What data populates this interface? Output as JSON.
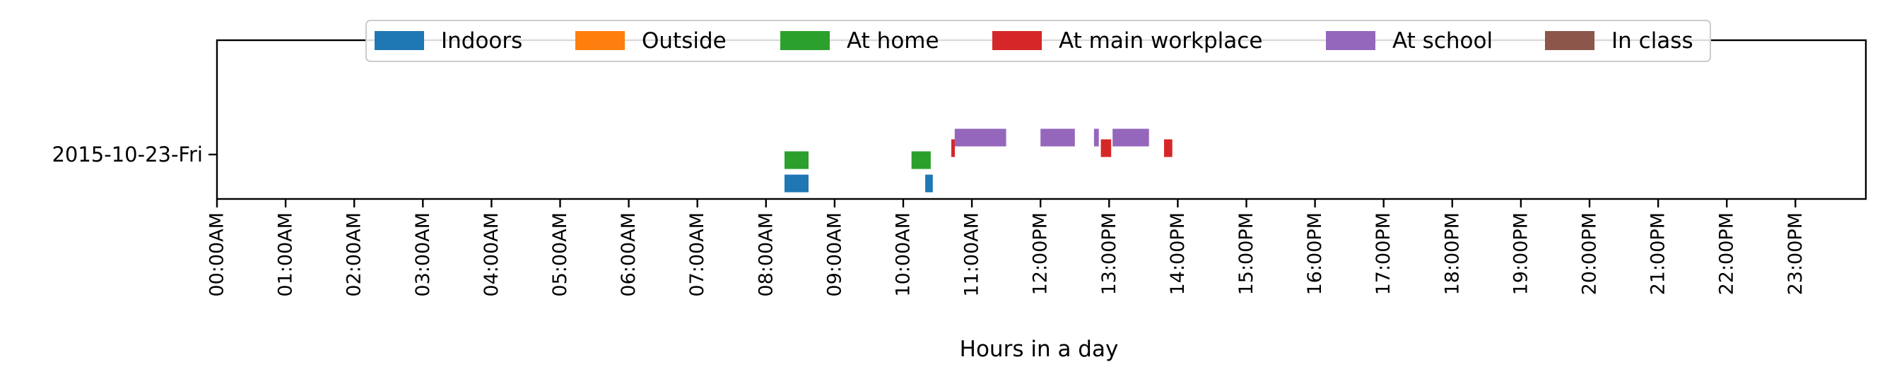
{
  "chart_data": {
    "type": "timeline",
    "title": "",
    "xlabel": "Hours in a day",
    "ylabel": "",
    "xlim": [
      0,
      24
    ],
    "x_ticks": [
      {
        "value": 0,
        "label": "00:00AM"
      },
      {
        "value": 1,
        "label": "01:00AM"
      },
      {
        "value": 2,
        "label": "02:00AM"
      },
      {
        "value": 3,
        "label": "03:00AM"
      },
      {
        "value": 4,
        "label": "04:00AM"
      },
      {
        "value": 5,
        "label": "05:00AM"
      },
      {
        "value": 6,
        "label": "06:00AM"
      },
      {
        "value": 7,
        "label": "07:00AM"
      },
      {
        "value": 8,
        "label": "08:00AM"
      },
      {
        "value": 9,
        "label": "09:00AM"
      },
      {
        "value": 10,
        "label": "10:00AM"
      },
      {
        "value": 11,
        "label": "11:00AM"
      },
      {
        "value": 12,
        "label": "12:00PM"
      },
      {
        "value": 13,
        "label": "13:00PM"
      },
      {
        "value": 14,
        "label": "14:00PM"
      },
      {
        "value": 15,
        "label": "15:00PM"
      },
      {
        "value": 16,
        "label": "16:00PM"
      },
      {
        "value": 17,
        "label": "17:00PM"
      },
      {
        "value": 18,
        "label": "18:00PM"
      },
      {
        "value": 19,
        "label": "19:00PM"
      },
      {
        "value": 20,
        "label": "20:00PM"
      },
      {
        "value": 21,
        "label": "21:00PM"
      },
      {
        "value": 22,
        "label": "22:00PM"
      },
      {
        "value": 23,
        "label": "23:00PM"
      }
    ],
    "categories": [
      "2015-10-23-Fri"
    ],
    "legend_position": "top-center",
    "grid": false,
    "series": [
      {
        "name": "Indoors",
        "color": "#1f77b4",
        "intervals": [
          [
            8.27,
            8.62
          ],
          [
            10.32,
            10.43
          ]
        ]
      },
      {
        "name": "Outside",
        "color": "#ff7f0e",
        "intervals": []
      },
      {
        "name": "At home",
        "color": "#2ca02c",
        "intervals": [
          [
            8.27,
            8.62
          ],
          [
            10.12,
            10.4
          ]
        ]
      },
      {
        "name": "At main workplace",
        "color": "#d62728",
        "intervals": [
          [
            10.7,
            10.75
          ],
          [
            12.88,
            13.03
          ],
          [
            13.8,
            13.92
          ]
        ]
      },
      {
        "name": "At school",
        "color": "#9467bd",
        "intervals": [
          [
            10.75,
            11.5
          ],
          [
            12.0,
            12.5
          ],
          [
            12.78,
            12.85
          ],
          [
            13.05,
            13.58
          ]
        ]
      },
      {
        "name": "In class",
        "color": "#8c564b",
        "intervals": []
      }
    ]
  }
}
